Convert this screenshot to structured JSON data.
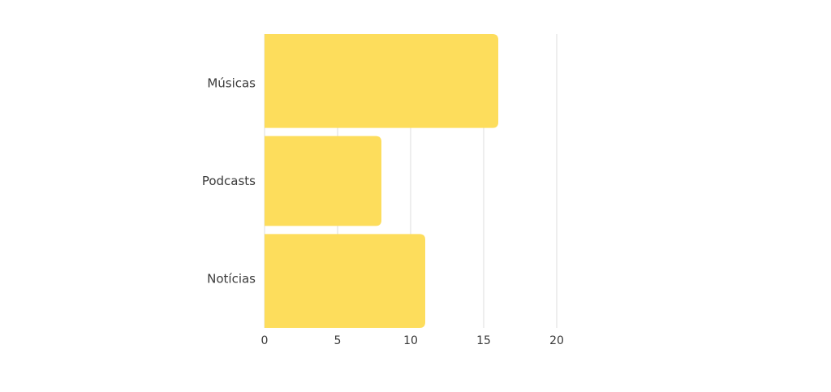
{
  "chart_data": {
    "type": "bar",
    "orientation": "horizontal",
    "categories": [
      "Músicas",
      "Podcasts",
      "Notícias"
    ],
    "values": [
      16,
      8,
      11
    ],
    "title": "",
    "xlabel": "",
    "ylabel": "",
    "xlim": [
      0,
      20
    ],
    "xticks": [
      "0",
      "5",
      "10",
      "15",
      "20"
    ],
    "grid": true,
    "legend": "none",
    "bar_color": "#FDDD5C"
  }
}
